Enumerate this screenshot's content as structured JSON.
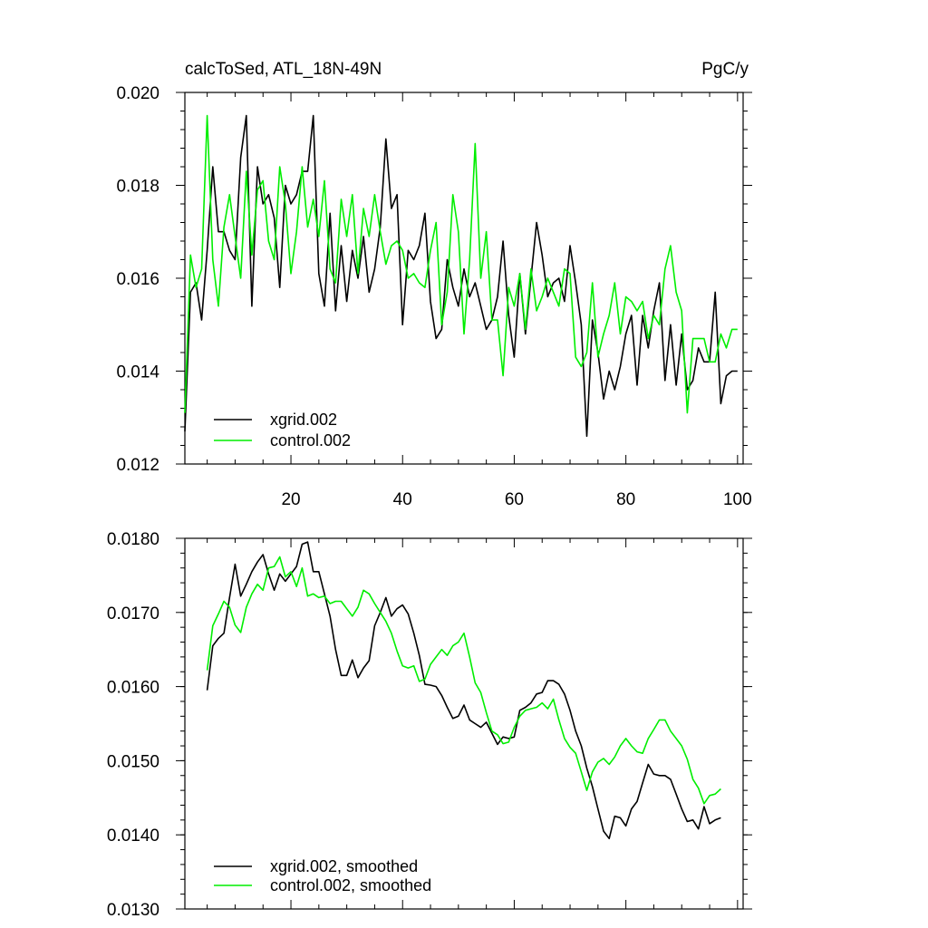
{
  "chart_data": [
    {
      "type": "line",
      "title": "calcToSed, ATL_18N-49N",
      "units": "PgC/y",
      "xlabel": "",
      "ylabel": "",
      "xlim": [
        1,
        101
      ],
      "ylim": [
        0.012,
        0.02
      ],
      "xticks": [
        20,
        40,
        60,
        80,
        100
      ],
      "xtick_labels": [
        "20",
        "40",
        "60",
        "80",
        "100"
      ],
      "yticks": [
        0.012,
        0.014,
        0.016,
        0.018,
        0.02
      ],
      "ytick_labels": [
        "0.012",
        "0.014",
        "0.016",
        "0.018",
        "0.020"
      ],
      "legend_position": "bottom-left",
      "series": [
        {
          "name": "xgrid.002",
          "color": "#000000",
          "x": [
            1,
            2,
            3,
            4,
            5,
            6,
            7,
            8,
            9,
            10,
            11,
            12,
            13,
            14,
            15,
            16,
            17,
            18,
            19,
            20,
            21,
            22,
            23,
            24,
            25,
            26,
            27,
            28,
            29,
            30,
            31,
            32,
            33,
            34,
            35,
            36,
            37,
            38,
            39,
            40,
            41,
            42,
            43,
            44,
            45,
            46,
            47,
            48,
            49,
            50,
            51,
            52,
            53,
            54,
            55,
            56,
            57,
            58,
            59,
            60,
            61,
            62,
            63,
            64,
            65,
            66,
            67,
            68,
            69,
            70,
            71,
            72,
            73,
            74,
            75,
            76,
            77,
            78,
            79,
            80,
            81,
            82,
            83,
            84,
            85,
            86,
            87,
            88,
            89,
            90,
            91,
            92,
            93,
            94,
            95,
            96,
            97,
            98,
            99,
            100
          ],
          "values": [
            0.0127,
            0.0157,
            0.0159,
            0.0151,
            0.0166,
            0.0184,
            0.017,
            0.017,
            0.0166,
            0.0164,
            0.0186,
            0.0195,
            0.0154,
            0.0184,
            0.0176,
            0.0178,
            0.0173,
            0.0158,
            0.018,
            0.0176,
            0.0178,
            0.0183,
            0.0183,
            0.0195,
            0.0161,
            0.0154,
            0.0174,
            0.0153,
            0.0167,
            0.0155,
            0.0166,
            0.016,
            0.0169,
            0.0157,
            0.0162,
            0.0171,
            0.019,
            0.0175,
            0.0178,
            0.015,
            0.0166,
            0.0164,
            0.0167,
            0.0174,
            0.0155,
            0.0147,
            0.0149,
            0.0164,
            0.0158,
            0.0154,
            0.0162,
            0.0156,
            0.0159,
            0.0154,
            0.0149,
            0.0151,
            0.0156,
            0.0168,
            0.0152,
            0.0143,
            0.0161,
            0.0148,
            0.016,
            0.0172,
            0.0165,
            0.0156,
            0.0159,
            0.016,
            0.0155,
            0.0167,
            0.0159,
            0.015,
            0.0126,
            0.0151,
            0.0144,
            0.0134,
            0.014,
            0.0136,
            0.0141,
            0.0148,
            0.0152,
            0.0137,
            0.0152,
            0.0145,
            0.0153,
            0.0159,
            0.0138,
            0.015,
            0.0137,
            0.0148,
            0.0136,
            0.0138,
            0.0145,
            0.0142,
            0.0142,
            0.0157,
            0.0133,
            0.0139,
            0.014,
            0.014
          ]
        },
        {
          "name": "control.002",
          "color": "#00ee00",
          "x": [
            1,
            2,
            3,
            4,
            5,
            6,
            7,
            8,
            9,
            10,
            11,
            12,
            13,
            14,
            15,
            16,
            17,
            18,
            19,
            20,
            21,
            22,
            23,
            24,
            25,
            26,
            27,
            28,
            29,
            30,
            31,
            32,
            33,
            34,
            35,
            36,
            37,
            38,
            39,
            40,
            41,
            42,
            43,
            44,
            45,
            46,
            47,
            48,
            49,
            50,
            51,
            52,
            53,
            54,
            55,
            56,
            57,
            58,
            59,
            60,
            61,
            62,
            63,
            64,
            65,
            66,
            67,
            68,
            69,
            70,
            71,
            72,
            73,
            74,
            75,
            76,
            77,
            78,
            79,
            80,
            81,
            82,
            83,
            84,
            85,
            86,
            87,
            88,
            89,
            90,
            91,
            92,
            93,
            94,
            95,
            96,
            97,
            98,
            99,
            100
          ],
          "values": [
            0.0131,
            0.0165,
            0.0158,
            0.0162,
            0.0195,
            0.0164,
            0.0154,
            0.0171,
            0.0178,
            0.0169,
            0.016,
            0.0183,
            0.0165,
            0.0179,
            0.0181,
            0.0168,
            0.0164,
            0.0184,
            0.0176,
            0.0161,
            0.017,
            0.0184,
            0.0171,
            0.0177,
            0.0169,
            0.0181,
            0.0162,
            0.0159,
            0.0177,
            0.0169,
            0.0178,
            0.0161,
            0.0175,
            0.0169,
            0.0178,
            0.017,
            0.0163,
            0.0167,
            0.0168,
            0.0166,
            0.016,
            0.0161,
            0.0159,
            0.0158,
            0.0166,
            0.0172,
            0.015,
            0.0157,
            0.0178,
            0.017,
            0.0148,
            0.0164,
            0.0189,
            0.016,
            0.017,
            0.0151,
            0.0151,
            0.0139,
            0.0158,
            0.0154,
            0.0161,
            0.0149,
            0.0162,
            0.0153,
            0.0156,
            0.016,
            0.0157,
            0.0154,
            0.0162,
            0.0161,
            0.0143,
            0.0141,
            0.0144,
            0.0159,
            0.0143,
            0.0148,
            0.0152,
            0.0159,
            0.0148,
            0.0156,
            0.0155,
            0.0153,
            0.0155,
            0.0147,
            0.0152,
            0.015,
            0.0162,
            0.0167,
            0.0157,
            0.0153,
            0.0131,
            0.0147,
            0.0147,
            0.0147,
            0.0142,
            0.0142,
            0.0148,
            0.0145,
            0.0149,
            0.0149
          ]
        }
      ]
    },
    {
      "type": "line",
      "title": "",
      "xlabel": "",
      "ylabel": "",
      "xlim": [
        1,
        101
      ],
      "ylim": [
        0.013,
        0.018
      ],
      "xticks": [
        20,
        40,
        60,
        80,
        100
      ],
      "yticks": [
        0.013,
        0.014,
        0.015,
        0.016,
        0.017,
        0.018
      ],
      "ytick_labels": [
        "0.0130",
        "0.0140",
        "0.0150",
        "0.0160",
        "0.0170",
        "0.0180"
      ],
      "legend_position": "bottom-left",
      "series": [
        {
          "name": "xgrid.002, smoothed",
          "color": "#000000",
          "x": [
            5,
            6,
            7,
            8,
            9,
            10,
            11,
            12,
            13,
            14,
            15,
            16,
            17,
            18,
            19,
            20,
            21,
            22,
            23,
            24,
            25,
            26,
            27,
            28,
            29,
            30,
            31,
            32,
            33,
            34,
            35,
            36,
            37,
            38,
            39,
            40,
            41,
            42,
            43,
            44,
            45,
            46,
            47,
            48,
            49,
            50,
            51,
            52,
            53,
            54,
            55,
            56,
            57,
            58,
            59,
            60,
            61,
            62,
            63,
            64,
            65,
            66,
            67,
            68,
            69,
            70,
            71,
            72,
            73,
            74,
            75,
            76,
            77,
            78,
            79,
            80,
            81,
            82,
            83,
            84,
            85,
            86,
            87,
            88,
            89,
            90,
            91,
            92,
            93,
            94,
            95,
            96,
            97
          ],
          "values": [
            0.01595,
            0.01655,
            0.01665,
            0.01672,
            0.0172,
            0.01765,
            0.01722,
            0.01738,
            0.01755,
            0.01768,
            0.01778,
            0.01752,
            0.0173,
            0.01752,
            0.01742,
            0.01752,
            0.01762,
            0.01792,
            0.01795,
            0.01755,
            0.01755,
            0.01725,
            0.01695,
            0.0165,
            0.01615,
            0.01615,
            0.01636,
            0.01612,
            0.01625,
            0.01635,
            0.01682,
            0.017,
            0.0172,
            0.01695,
            0.01705,
            0.0171,
            0.01698,
            0.01672,
            0.01642,
            0.01603,
            0.01602,
            0.016,
            0.01588,
            0.01572,
            0.01557,
            0.0156,
            0.01575,
            0.01555,
            0.0155,
            0.01545,
            0.01552,
            0.01537,
            0.01522,
            0.01532,
            0.0153,
            0.01532,
            0.01568,
            0.01572,
            0.01578,
            0.0159,
            0.01592,
            0.01608,
            0.01608,
            0.01603,
            0.0159,
            0.01568,
            0.0154,
            0.0152,
            0.0149,
            0.01465,
            0.01435,
            0.01405,
            0.01395,
            0.01425,
            0.01423,
            0.01412,
            0.01435,
            0.01445,
            0.0147,
            0.01495,
            0.01482,
            0.0148,
            0.0148,
            0.01475,
            0.01455,
            0.01435,
            0.01418,
            0.0142,
            0.01408,
            0.01438,
            0.01415,
            0.0142,
            0.01423
          ]
        },
        {
          "name": "control.002, smoothed",
          "color": "#00ee00",
          "x": [
            5,
            6,
            7,
            8,
            9,
            10,
            11,
            12,
            13,
            14,
            15,
            16,
            17,
            18,
            19,
            20,
            21,
            22,
            23,
            24,
            25,
            26,
            27,
            28,
            29,
            30,
            31,
            32,
            33,
            34,
            35,
            36,
            37,
            38,
            39,
            40,
            41,
            42,
            43,
            44,
            45,
            46,
            47,
            48,
            49,
            50,
            51,
            52,
            53,
            54,
            55,
            56,
            57,
            58,
            59,
            60,
            61,
            62,
            63,
            64,
            65,
            66,
            67,
            68,
            69,
            70,
            71,
            72,
            73,
            74,
            75,
            76,
            77,
            78,
            79,
            80,
            81,
            82,
            83,
            84,
            85,
            86,
            87,
            88,
            89,
            90,
            91,
            92,
            93,
            94,
            95,
            96,
            97
          ],
          "values": [
            0.01622,
            0.01682,
            0.01698,
            0.01715,
            0.01707,
            0.01683,
            0.01673,
            0.01707,
            0.01725,
            0.01738,
            0.0173,
            0.0176,
            0.01762,
            0.01775,
            0.01748,
            0.01755,
            0.01735,
            0.0176,
            0.01722,
            0.01725,
            0.0172,
            0.01722,
            0.01712,
            0.01715,
            0.01715,
            0.01705,
            0.01695,
            0.01707,
            0.0173,
            0.01725,
            0.01712,
            0.017,
            0.01688,
            0.01672,
            0.01648,
            0.01628,
            0.01625,
            0.01628,
            0.01607,
            0.0161,
            0.0163,
            0.0164,
            0.0165,
            0.01642,
            0.01655,
            0.0166,
            0.01672,
            0.0164,
            0.01605,
            0.01592,
            0.01565,
            0.0154,
            0.01535,
            0.01523,
            0.01525,
            0.01545,
            0.0156,
            0.01568,
            0.0157,
            0.01572,
            0.01578,
            0.0157,
            0.01583,
            0.01555,
            0.0153,
            0.01518,
            0.0151,
            0.01485,
            0.0146,
            0.01485,
            0.01498,
            0.01503,
            0.01495,
            0.01505,
            0.0152,
            0.0153,
            0.0152,
            0.01512,
            0.0151,
            0.0153,
            0.01542,
            0.01555,
            0.01555,
            0.0154,
            0.0153,
            0.0152,
            0.01502,
            0.01475,
            0.01463,
            0.01442,
            0.01453,
            0.01455,
            0.01462
          ]
        }
      ]
    }
  ]
}
